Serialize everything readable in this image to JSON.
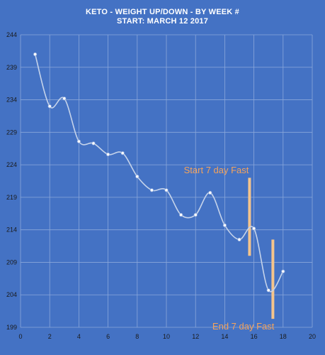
{
  "chart_data": {
    "type": "line",
    "title": "KETO - WEIGHT UP/DOWN - BY WEEK #",
    "subtitle": "START: MARCH 12 2017",
    "xlabel": "",
    "ylabel": "",
    "xlim": [
      0,
      20
    ],
    "ylim": [
      199,
      244
    ],
    "xticks": [
      0,
      2,
      4,
      6,
      8,
      10,
      12,
      14,
      16,
      18,
      20
    ],
    "yticks": [
      199,
      204,
      209,
      214,
      219,
      224,
      229,
      234,
      239,
      244
    ],
    "grid": true,
    "legend": "none",
    "smooth": true,
    "series": [
      {
        "x": [
          1,
          2,
          3,
          4,
          5,
          6,
          7,
          8,
          9,
          10,
          11,
          12,
          13,
          14,
          15,
          16,
          17,
          18
        ],
        "values": [
          241,
          233,
          234.2,
          227.6,
          227.3,
          225.6,
          225.8,
          222.2,
          220.1,
          220.1,
          216.3,
          216.3,
          219.7,
          214.7,
          212.5,
          214.2,
          204.7,
          207.6
        ]
      }
    ],
    "annotations": [
      {
        "text": "Start 7 day Fast",
        "x": 15.7,
        "y_from": 210,
        "y_to": 222
      },
      {
        "text": "End 7 day Fast",
        "x": 17.3,
        "y_from": 200.3,
        "y_to": 212.5
      }
    ],
    "colors": {
      "background": "#4472c4",
      "line": "#c5d3ea",
      "marker_fill": "#ffffff",
      "marker_stroke": "#8ea9db",
      "grid": "#8aa7da",
      "annotation": "#f4a35c",
      "annotation_bar": "#f4c48c",
      "title": "#ffffff",
      "tick_label": "#1a1a1a"
    }
  }
}
